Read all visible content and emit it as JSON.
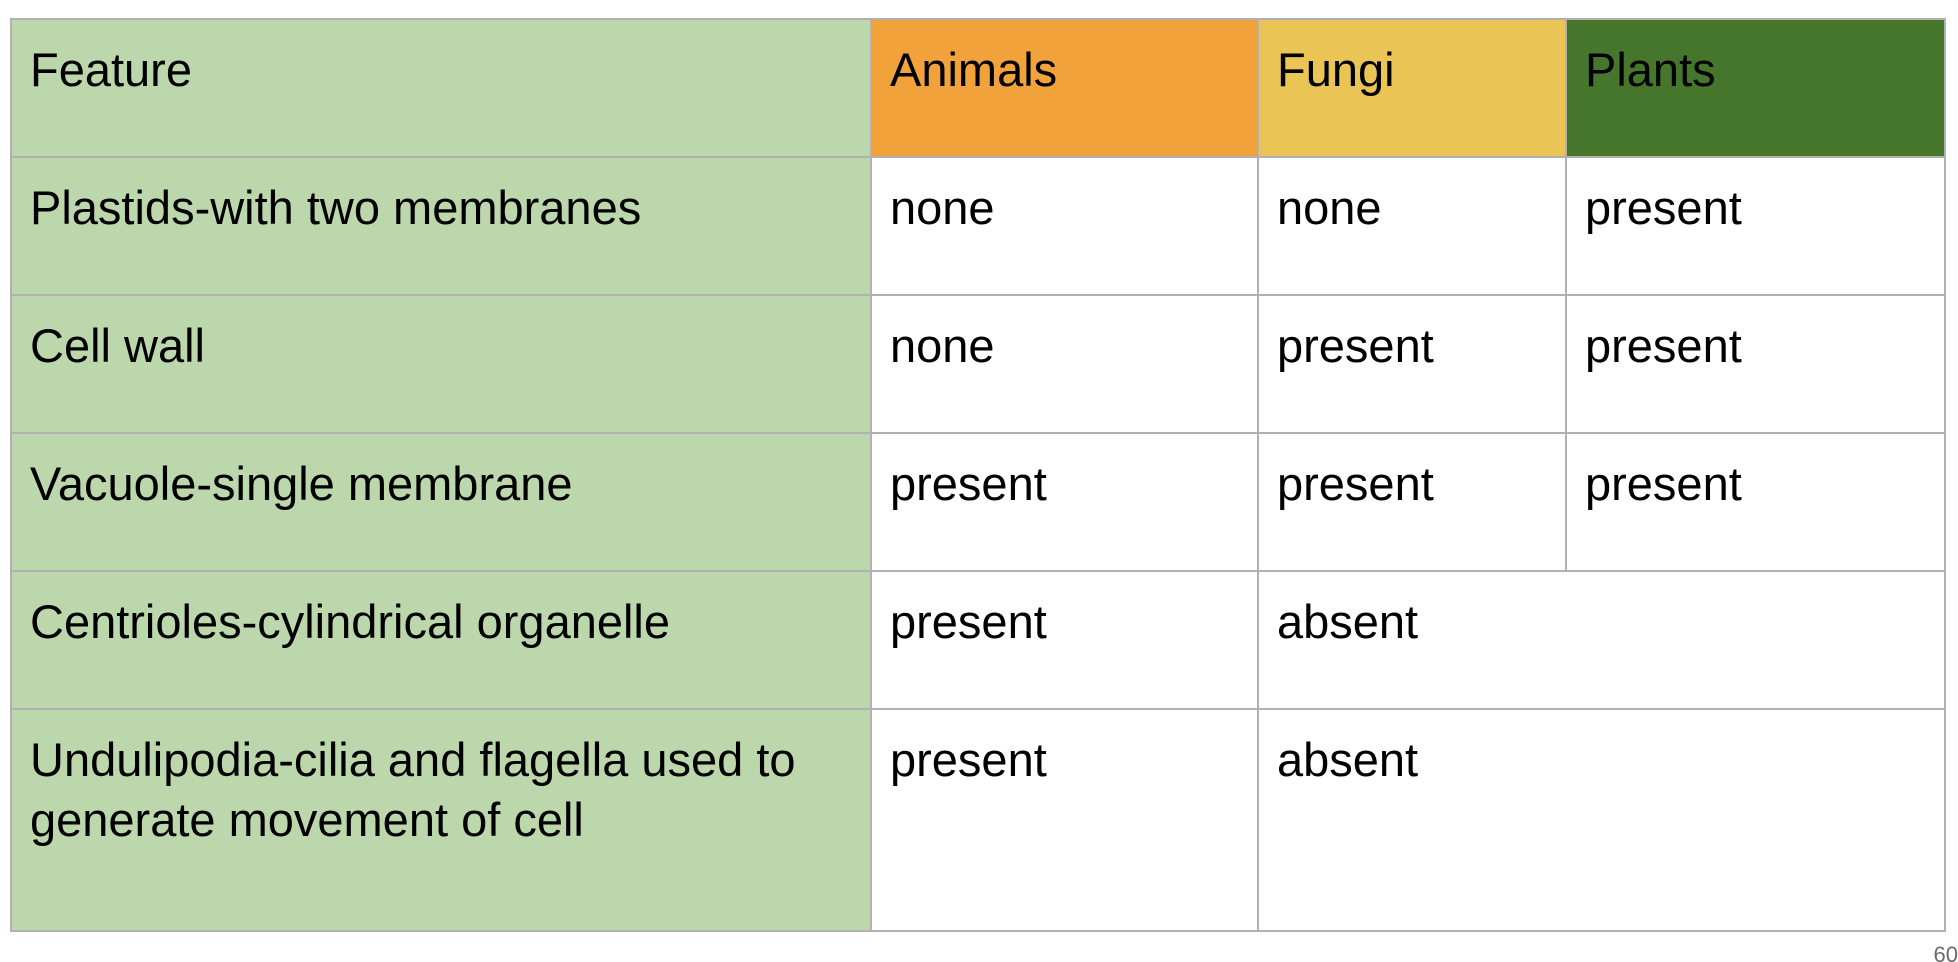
{
  "colors": {
    "feature_column": "#bdd7ad",
    "animals_header": "#f2a23a",
    "fungi_header": "#eac454",
    "plants_header": "#46762c",
    "grid_lines": "#b1b1b1"
  },
  "table": {
    "headers": {
      "feature": "Feature",
      "animals": "Animals",
      "fungi": "Fungi",
      "plants": "Plants"
    },
    "rows": [
      {
        "feature": "Plastids-with two membranes",
        "animals": "none",
        "fungi": "none",
        "plants": "present"
      },
      {
        "feature": "Cell wall",
        "animals": "none",
        "fungi": "present",
        "plants": "present"
      },
      {
        "feature": "Vacuole-single membrane",
        "animals": "present",
        "fungi": "present",
        "plants": "present"
      },
      {
        "feature": "Centrioles-cylindrical organelle",
        "animals": "present",
        "fungi_and_plants": "absent"
      },
      {
        "feature": "Undulipodia-cilia and flagella used to generate movement of cell",
        "animals": "present",
        "fungi_and_plants": "absent"
      }
    ]
  },
  "page_number": "60"
}
